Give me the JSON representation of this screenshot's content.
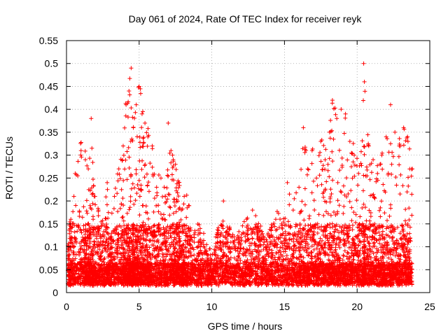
{
  "chart_data": {
    "type": "scatter",
    "title": "Day 061 of 2024, Rate Of TEC Index for receiver reyk",
    "xlabel": "GPS time / hours",
    "ylabel": "ROTI / TECUs",
    "xlim": [
      0,
      25
    ],
    "ylim": [
      0,
      0.55
    ],
    "xticks": [
      0,
      5,
      10,
      15,
      20,
      25
    ],
    "yticks": [
      0,
      0.05,
      0.1,
      0.15,
      0.2,
      0.25,
      0.3,
      0.35,
      0.4,
      0.45,
      0.5,
      0.55
    ],
    "grid": true,
    "marker": "+",
    "color": "#ff0000",
    "series": [
      {
        "name": "ROTI",
        "x": [
          0.1,
          0.3,
          0.6,
          1.0,
          1.3,
          1.5,
          1.7,
          1.9,
          2.2,
          2.5,
          2.8,
          3.0,
          3.3,
          3.6,
          3.9,
          4.1,
          4.3,
          4.45,
          4.6,
          4.8,
          5.0,
          5.2,
          5.4,
          5.6,
          5.9,
          6.2,
          6.5,
          6.8,
          7.0,
          7.3,
          7.5,
          7.7,
          7.9,
          8.1,
          8.4,
          8.8,
          9.2,
          9.6,
          10.0,
          10.4,
          10.8,
          11.2,
          11.6,
          12.0,
          12.4,
          12.8,
          13.2,
          13.6,
          14.0,
          14.4,
          14.8,
          15.2,
          15.6,
          16.0,
          16.3,
          16.6,
          16.9,
          17.2,
          17.5,
          17.8,
          18.1,
          18.3,
          18.6,
          18.9,
          19.2,
          19.5,
          19.8,
          20.1,
          20.45,
          20.5,
          20.8,
          21.1,
          21.4,
          21.7,
          22.0,
          22.3,
          22.6,
          22.9,
          23.2,
          23.5,
          23.8
        ],
        "y": [
          0.09,
          0.16,
          0.26,
          0.31,
          0.29,
          0.27,
          0.38,
          0.21,
          0.18,
          0.15,
          0.24,
          0.12,
          0.21,
          0.27,
          0.32,
          0.41,
          0.44,
          0.49,
          0.36,
          0.41,
          0.45,
          0.39,
          0.37,
          0.34,
          0.32,
          0.23,
          0.25,
          0.21,
          0.37,
          0.3,
          0.28,
          0.24,
          0.18,
          0.21,
          0.19,
          0.12,
          0.14,
          0.09,
          0.07,
          0.12,
          0.2,
          0.14,
          0.1,
          0.12,
          0.16,
          0.18,
          0.14,
          0.11,
          0.12,
          0.16,
          0.15,
          0.24,
          0.18,
          0.23,
          0.36,
          0.27,
          0.31,
          0.25,
          0.33,
          0.29,
          0.35,
          0.42,
          0.38,
          0.4,
          0.39,
          0.33,
          0.3,
          0.26,
          0.5,
          0.46,
          0.32,
          0.29,
          0.26,
          0.3,
          0.34,
          0.41,
          0.35,
          0.32,
          0.36,
          0.33,
          0.27
        ]
      }
    ]
  }
}
